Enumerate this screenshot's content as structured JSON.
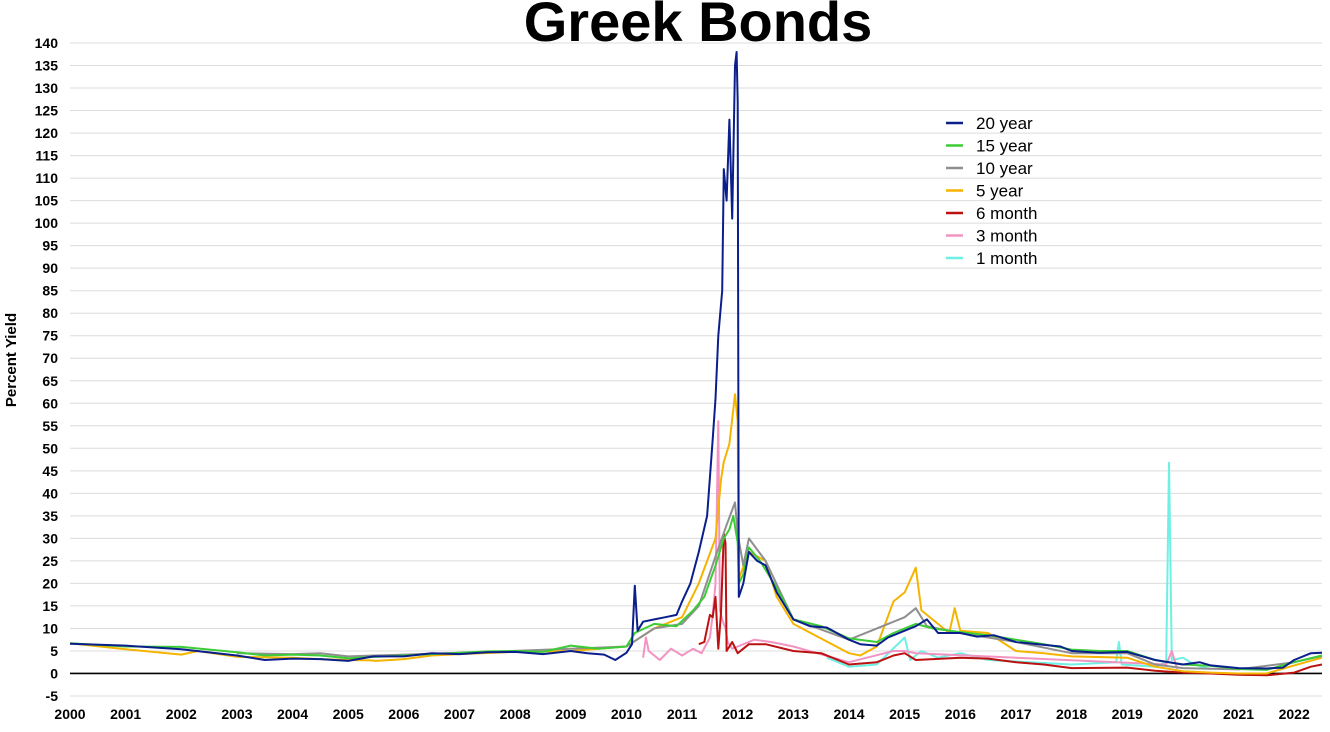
{
  "chart_data": {
    "type": "line",
    "title": "Greek Bonds",
    "xlabel": "",
    "ylabel": "Percent Yield",
    "xlim": [
      2000,
      2022.5
    ],
    "ylim": [
      -5,
      140
    ],
    "x_ticks": [
      "2000",
      "2001",
      "2002",
      "2003",
      "2004",
      "2005",
      "2006",
      "2007",
      "2008",
      "2009",
      "2010",
      "2011",
      "2012",
      "2013",
      "2014",
      "2015",
      "2016",
      "2017",
      "2018",
      "2019",
      "2020",
      "2021",
      "2022"
    ],
    "y_ticks": [
      -5,
      0,
      5,
      10,
      15,
      20,
      25,
      30,
      35,
      40,
      45,
      50,
      55,
      60,
      65,
      70,
      75,
      80,
      85,
      90,
      95,
      100,
      105,
      110,
      115,
      120,
      125,
      130,
      135,
      140
    ],
    "grid": true,
    "legend_position": "top-right",
    "series": [
      {
        "name": "20 year",
        "color": "#0a1e8c",
        "points": [
          [
            2000.0,
            6.6
          ],
          [
            2001.0,
            6.2
          ],
          [
            2002.0,
            5.4
          ],
          [
            2003.0,
            4.0
          ],
          [
            2003.5,
            3.0
          ],
          [
            2004.0,
            3.3
          ],
          [
            2004.5,
            3.2
          ],
          [
            2005.0,
            2.8
          ],
          [
            2005.45,
            3.8
          ],
          [
            2006.0,
            3.8
          ],
          [
            2006.5,
            4.5
          ],
          [
            2007.0,
            4.3
          ],
          [
            2007.5,
            4.7
          ],
          [
            2008.0,
            4.8
          ],
          [
            2008.5,
            4.3
          ],
          [
            2009.0,
            5.0
          ],
          [
            2009.3,
            4.5
          ],
          [
            2009.6,
            4.2
          ],
          [
            2009.8,
            3.0
          ],
          [
            2010.0,
            4.6
          ],
          [
            2010.1,
            6.5
          ],
          [
            2010.15,
            19.5
          ],
          [
            2010.2,
            9.5
          ],
          [
            2010.3,
            11.5
          ],
          [
            2010.5,
            12.0
          ],
          [
            2010.7,
            12.5
          ],
          [
            2010.9,
            13.0
          ],
          [
            2011.0,
            16.0
          ],
          [
            2011.15,
            20.0
          ],
          [
            2011.3,
            27.0
          ],
          [
            2011.45,
            35.0
          ],
          [
            2011.55,
            52.0
          ],
          [
            2011.6,
            61.0
          ],
          [
            2011.65,
            75.0
          ],
          [
            2011.72,
            85.0
          ],
          [
            2011.75,
            112.0
          ],
          [
            2011.8,
            105.0
          ],
          [
            2011.85,
            123.0
          ],
          [
            2011.9,
            101.0
          ],
          [
            2011.95,
            135.0
          ],
          [
            2011.98,
            138.0
          ],
          [
            2012.0,
            127.0
          ],
          [
            2012.02,
            17.0
          ],
          [
            2012.1,
            20.0
          ],
          [
            2012.2,
            27.0
          ],
          [
            2012.35,
            25.0
          ],
          [
            2012.5,
            24.0
          ],
          [
            2012.7,
            18.0
          ],
          [
            2013.0,
            12.0
          ],
          [
            2013.3,
            10.5
          ],
          [
            2013.6,
            10.2
          ],
          [
            2014.0,
            7.5
          ],
          [
            2014.2,
            6.5
          ],
          [
            2014.5,
            6.2
          ],
          [
            2014.7,
            8.0
          ],
          [
            2015.0,
            9.5
          ],
          [
            2015.2,
            10.5
          ],
          [
            2015.4,
            12.0
          ],
          [
            2015.6,
            9.0
          ],
          [
            2016.0,
            9.0
          ],
          [
            2016.3,
            8.2
          ],
          [
            2016.6,
            8.5
          ],
          [
            2017.0,
            7.0
          ],
          [
            2017.4,
            6.5
          ],
          [
            2017.8,
            6.0
          ],
          [
            2018.0,
            5.0
          ],
          [
            2018.5,
            4.6
          ],
          [
            2019.0,
            4.8
          ],
          [
            2019.5,
            3.0
          ],
          [
            2020.0,
            2.0
          ],
          [
            2020.3,
            2.5
          ],
          [
            2020.5,
            1.8
          ],
          [
            2021.0,
            1.2
          ],
          [
            2021.5,
            1.1
          ],
          [
            2021.8,
            1.3
          ],
          [
            2022.0,
            3.0
          ],
          [
            2022.3,
            4.5
          ],
          [
            2022.5,
            4.6
          ]
        ]
      },
      {
        "name": "15 year",
        "color": "#3ccc36",
        "points": [
          [
            2000.0,
            6.7
          ],
          [
            2001.0,
            6.0
          ],
          [
            2002.0,
            5.9
          ],
          [
            2003.0,
            4.7
          ],
          [
            2003.5,
            4.0
          ],
          [
            2004.0,
            4.2
          ],
          [
            2004.5,
            4.0
          ],
          [
            2005.0,
            3.4
          ],
          [
            2007.5,
            4.9
          ],
          [
            2008.0,
            5.0
          ],
          [
            2008.5,
            4.8
          ],
          [
            2009.0,
            6.2
          ],
          [
            2009.5,
            5.5
          ],
          [
            2010.0,
            6.0
          ],
          [
            2010.15,
            9.0
          ],
          [
            2010.5,
            11.0
          ],
          [
            2010.9,
            10.5
          ],
          [
            2011.2,
            14.0
          ],
          [
            2011.4,
            17.0
          ],
          [
            2011.6,
            24.0
          ],
          [
            2011.75,
            30.0
          ],
          [
            2011.85,
            32.0
          ],
          [
            2011.92,
            35.0
          ],
          [
            2012.0,
            29.0
          ],
          [
            2012.02,
            20.0
          ],
          [
            2012.1,
            22.0
          ],
          [
            2012.2,
            28.0
          ],
          [
            2012.4,
            25.0
          ],
          [
            2012.7,
            19.0
          ],
          [
            2013.0,
            12.0
          ],
          [
            2013.5,
            10.5
          ],
          [
            2014.0,
            7.8
          ],
          [
            2014.5,
            7.0
          ],
          [
            2014.8,
            9.0
          ],
          [
            2015.2,
            11.0
          ],
          [
            2015.5,
            10.0
          ],
          [
            2016.0,
            9.2
          ],
          [
            2016.5,
            8.5
          ],
          [
            2017.0,
            7.5
          ],
          [
            2017.5,
            6.5
          ],
          [
            2018.0,
            5.3
          ],
          [
            2018.5,
            5.0
          ],
          [
            2019.0,
            5.0
          ],
          [
            2019.5,
            3.0
          ],
          [
            2020.0,
            2.0
          ],
          [
            2020.5,
            1.7
          ],
          [
            2021.0,
            1.0
          ],
          [
            2021.5,
            0.8
          ],
          [
            2022.0,
            2.5
          ],
          [
            2022.5,
            4.0
          ]
        ]
      },
      {
        "name": "10 year",
        "color": "#8f8f8f",
        "points": [
          [
            2003.0,
            4.5
          ],
          [
            2004.0,
            4.3
          ],
          [
            2004.5,
            4.5
          ],
          [
            2005.0,
            3.8
          ],
          [
            2007.5,
            4.8
          ],
          [
            2009.0,
            5.5
          ],
          [
            2010.0,
            6.0
          ],
          [
            2010.5,
            10.0
          ],
          [
            2011.0,
            11.0
          ],
          [
            2011.3,
            15.0
          ],
          [
            2011.6,
            26.0
          ],
          [
            2011.8,
            33.0
          ],
          [
            2011.95,
            38.0
          ],
          [
            2012.0,
            31.0
          ],
          [
            2012.1,
            24.0
          ],
          [
            2012.2,
            30.0
          ],
          [
            2012.5,
            25.0
          ],
          [
            2013.0,
            12.0
          ],
          [
            2014.0,
            7.5
          ],
          [
            2015.0,
            12.5
          ],
          [
            2015.2,
            14.5
          ],
          [
            2015.4,
            10.5
          ],
          [
            2016.0,
            9.0
          ],
          [
            2017.0,
            7.0
          ],
          [
            2018.0,
            4.5
          ],
          [
            2019.0,
            4.5
          ],
          [
            2019.5,
            2.0
          ],
          [
            2020.0,
            1.2
          ],
          [
            2021.0,
            0.9
          ],
          [
            2022.0,
            2.5
          ],
          [
            2022.5,
            3.9
          ]
        ]
      },
      {
        "name": "5 year",
        "color": "#f5b400",
        "points": [
          [
            2000.0,
            6.7
          ],
          [
            2001.0,
            5.4
          ],
          [
            2002.0,
            4.2
          ],
          [
            2002.3,
            5.0
          ],
          [
            2003.0,
            3.7
          ],
          [
            2004.0,
            3.5
          ],
          [
            2004.5,
            3.2
          ],
          [
            2005.0,
            3.0
          ],
          [
            2005.4,
            2.9
          ],
          [
            2005.5,
            2.8
          ],
          [
            2006.0,
            3.2
          ],
          [
            2006.5,
            4.0
          ],
          [
            2007.0,
            4.3
          ],
          [
            2008.0,
            4.8
          ],
          [
            2009.0,
            5.0
          ],
          [
            2010.0,
            6.0
          ],
          [
            2010.5,
            10.0
          ],
          [
            2011.0,
            12.5
          ],
          [
            2011.3,
            20.0
          ],
          [
            2011.6,
            30.0
          ],
          [
            2011.7,
            43.0
          ],
          [
            2011.75,
            47.0
          ],
          [
            2011.85,
            51.0
          ],
          [
            2011.95,
            62.0
          ],
          [
            2012.0,
            56.0
          ],
          [
            2012.02,
            21.0
          ],
          [
            2012.2,
            27.0
          ],
          [
            2012.5,
            25.0
          ],
          [
            2012.7,
            17.0
          ],
          [
            2013.0,
            11.0
          ],
          [
            2014.0,
            4.5
          ],
          [
            2014.2,
            4.0
          ],
          [
            2014.5,
            6.0
          ],
          [
            2014.8,
            16.0
          ],
          [
            2015.0,
            18.0
          ],
          [
            2015.2,
            23.5
          ],
          [
            2015.3,
            14.0
          ],
          [
            2015.5,
            12.0
          ],
          [
            2015.8,
            9.0
          ],
          [
            2015.9,
            14.5
          ],
          [
            2016.0,
            9.5
          ],
          [
            2016.5,
            9.0
          ],
          [
            2017.0,
            5.0
          ],
          [
            2017.5,
            4.5
          ],
          [
            2018.0,
            3.8
          ],
          [
            2019.0,
            3.5
          ],
          [
            2019.5,
            1.5
          ],
          [
            2020.0,
            0.5
          ],
          [
            2020.5,
            0.2
          ],
          [
            2021.0,
            0.0
          ],
          [
            2021.5,
            0.0
          ],
          [
            2022.0,
            1.8
          ],
          [
            2022.5,
            3.5
          ]
        ]
      },
      {
        "name": "6 month",
        "color": "#bb1111",
        "points": [
          [
            2011.3,
            6.5
          ],
          [
            2011.4,
            7.0
          ],
          [
            2011.5,
            13.0
          ],
          [
            2011.55,
            12.5
          ],
          [
            2011.6,
            17.0
          ],
          [
            2011.65,
            5.5
          ],
          [
            2011.7,
            13.5
          ],
          [
            2011.75,
            31.0
          ],
          [
            2011.78,
            29.0
          ],
          [
            2011.8,
            5.0
          ],
          [
            2011.9,
            7.0
          ],
          [
            2012.0,
            4.5
          ],
          [
            2012.2,
            6.5
          ],
          [
            2012.5,
            6.5
          ],
          [
            2013.0,
            5.0
          ],
          [
            2013.5,
            4.5
          ],
          [
            2014.0,
            2.0
          ],
          [
            2014.5,
            2.5
          ],
          [
            2014.8,
            4.0
          ],
          [
            2015.0,
            4.5
          ],
          [
            2015.2,
            3.0
          ],
          [
            2016.0,
            3.5
          ],
          [
            2016.5,
            3.3
          ],
          [
            2017.0,
            2.5
          ],
          [
            2017.5,
            2.0
          ],
          [
            2018.0,
            1.2
          ],
          [
            2019.0,
            1.3
          ],
          [
            2019.5,
            0.6
          ],
          [
            2020.0,
            0.2
          ],
          [
            2020.5,
            0.0
          ],
          [
            2021.0,
            -0.3
          ],
          [
            2021.5,
            -0.4
          ],
          [
            2022.0,
            0.2
          ],
          [
            2022.3,
            1.5
          ],
          [
            2022.5,
            2.0
          ]
        ]
      },
      {
        "name": "3 month",
        "color": "#f393c2",
        "points": [
          [
            2010.3,
            3.5
          ],
          [
            2010.35,
            8.0
          ],
          [
            2010.4,
            5.0
          ],
          [
            2010.6,
            3.0
          ],
          [
            2010.8,
            5.5
          ],
          [
            2011.0,
            4.0
          ],
          [
            2011.2,
            5.5
          ],
          [
            2011.35,
            4.5
          ],
          [
            2011.5,
            8.0
          ],
          [
            2011.55,
            13.0
          ],
          [
            2011.6,
            20.0
          ],
          [
            2011.65,
            56.0
          ],
          [
            2011.68,
            14.0
          ],
          [
            2011.72,
            12.0
          ],
          [
            2011.78,
            10.0
          ],
          [
            2011.82,
            7.0
          ],
          [
            2011.9,
            5.5
          ],
          [
            2012.0,
            6.0
          ],
          [
            2012.3,
            7.5
          ],
          [
            2012.6,
            7.0
          ],
          [
            2013.0,
            6.0
          ],
          [
            2014.0,
            2.5
          ],
          [
            2014.8,
            5.0
          ],
          [
            2015.0,
            5.0
          ],
          [
            2015.2,
            4.5
          ],
          [
            2019.7,
            2.0
          ],
          [
            2019.8,
            5.0
          ],
          [
            2019.9,
            1.0
          ]
        ]
      },
      {
        "name": "1 month",
        "color": "#6ef0e4",
        "points": [
          [
            2013.6,
            3.5
          ],
          [
            2014.0,
            1.5
          ],
          [
            2014.5,
            2.0
          ],
          [
            2015.0,
            8.0
          ],
          [
            2015.1,
            3.0
          ],
          [
            2015.3,
            5.0
          ],
          [
            2015.6,
            3.5
          ],
          [
            2016.0,
            4.5
          ],
          [
            2016.5,
            3.0
          ],
          [
            2018.0,
            2.0
          ],
          [
            2018.8,
            2.5
          ],
          [
            2018.85,
            7.0
          ],
          [
            2018.9,
            2.0
          ],
          [
            2019.5,
            1.5
          ],
          [
            2019.7,
            2.5
          ],
          [
            2019.75,
            46.8
          ],
          [
            2019.8,
            3.0
          ],
          [
            2020.0,
            3.5
          ],
          [
            2020.2,
            2.0
          ],
          [
            2020.5,
            1.0
          ]
        ]
      }
    ]
  }
}
